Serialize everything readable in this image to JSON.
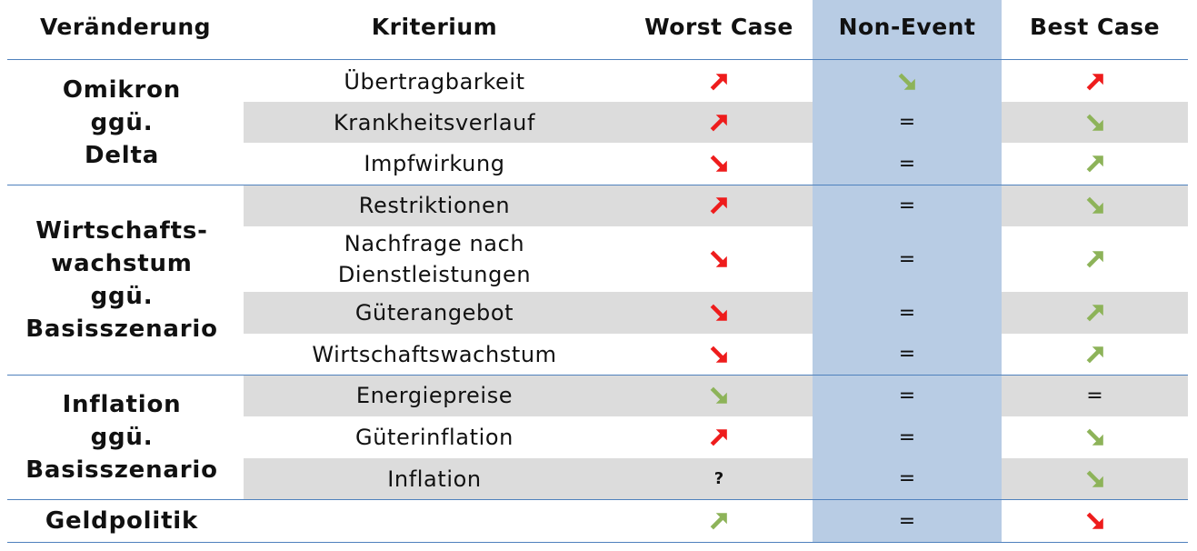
{
  "header": {
    "veraenderung": "Veränderung",
    "kriterium": "Kriterium",
    "worst": "Worst Case",
    "non_event": "Non-Event",
    "best": "Best Case"
  },
  "groups": [
    {
      "label_lines": [
        "Omikron",
        "ggü.",
        "Delta"
      ]
    },
    {
      "label_lines": [
        "Wirtschafts-",
        "wachstum",
        "ggü.",
        "Basisszenario"
      ]
    },
    {
      "label_lines": [
        "Inflation",
        "ggü.",
        "Basisszenario"
      ]
    },
    {
      "label_lines": [
        "Geldpolitik"
      ]
    }
  ],
  "rows": [
    {
      "kriterium": "Übertragbarkeit",
      "worst": "up-red",
      "non": "down-green",
      "best": "up-red"
    },
    {
      "kriterium": "Krankheitsverlauf",
      "worst": "up-red",
      "non": "=",
      "best": "down-green"
    },
    {
      "kriterium": "Impfwirkung",
      "worst": "down-red",
      "non": "=",
      "best": "up-green"
    },
    {
      "kriterium": "Restriktionen",
      "worst": "up-red",
      "non": "=",
      "best": "down-green"
    },
    {
      "kriterium": "Nachfrage nach\nDienstleistungen",
      "worst": "down-red",
      "non": "=",
      "best": "up-green"
    },
    {
      "kriterium": "Güterangebot",
      "worst": "down-red",
      "non": "=",
      "best": "up-green"
    },
    {
      "kriterium": "Wirtschaftswachstum",
      "worst": "down-red",
      "non": "=",
      "best": "up-green"
    },
    {
      "kriterium": "Energiepreise",
      "worst": "down-green",
      "non": "=",
      "best": "="
    },
    {
      "kriterium": "Güterinflation",
      "worst": "up-red",
      "non": "=",
      "best": "down-green"
    },
    {
      "kriterium": "Inflation",
      "worst": "?",
      "non": "=",
      "best": "down-green"
    },
    {
      "kriterium": "",
      "worst": "up-green",
      "non": "=",
      "best": "down-red"
    }
  ],
  "colors": {
    "arrow_red": "#ee1c1c",
    "arrow_green": "#8db359",
    "non_event_bg": "#b8cce4",
    "row_gray": "#dcdcdc",
    "divider": "#4f81bd"
  },
  "icons": {
    "up-red": "arrow-up-right-icon",
    "down-red": "arrow-down-right-icon",
    "up-green": "arrow-up-right-icon",
    "down-green": "arrow-down-right-icon"
  }
}
